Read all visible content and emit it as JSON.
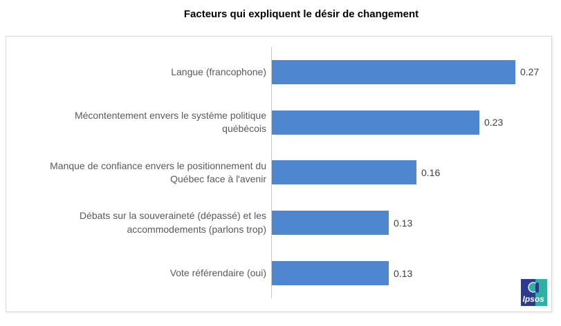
{
  "chart_data": {
    "type": "bar",
    "orientation": "horizontal",
    "title": "Facteurs qui expliquent le désir de changement",
    "categories": [
      "Langue (francophone)",
      "Mécontentement envers le système politique\nquébécois",
      "Manque de confiance envers le positionnement du\nQuébec face à l'avenir",
      "Débats sur la souveraineté (dépassé) et les\naccommodements (parlons trop)",
      "Vote référendaire (oui)"
    ],
    "values": [
      0.27,
      0.23,
      0.16,
      0.13,
      0.13
    ],
    "value_labels": [
      "0.27",
      "0.23",
      "0.16",
      "0.13",
      "0.13"
    ],
    "xlim": [
      0,
      0.31
    ],
    "bar_color": "#4e86d0",
    "axis_line_color": "#c6c6c6",
    "grid": false,
    "legend": "none",
    "data_labels": "outside-end"
  },
  "logo": {
    "label": "Ipsos",
    "navy": "#2b3a8f",
    "teal": "#2eb0a5"
  }
}
